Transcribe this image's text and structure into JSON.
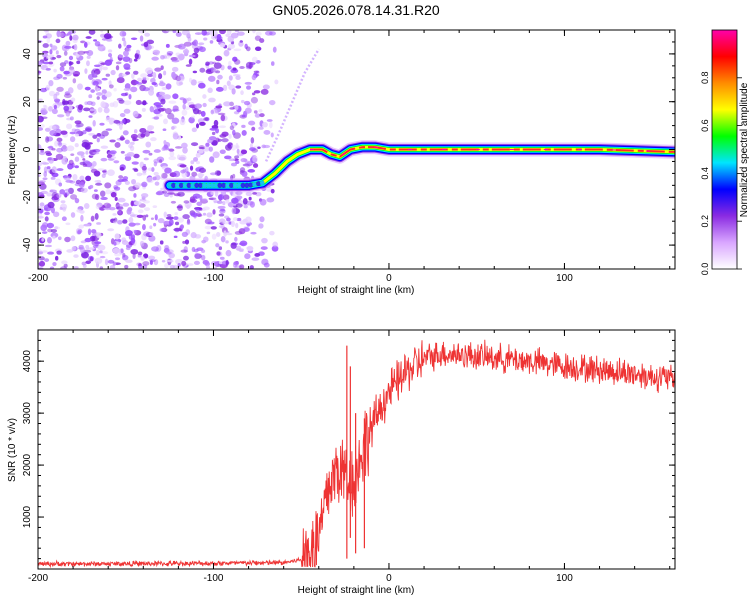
{
  "title": "GN05.2026.078.14.31.R20",
  "chart_data": [
    {
      "type": "heatmap",
      "xlabel": "Height of straight line (km)",
      "ylabel": "Frequency (Hz)",
      "xlim": [
        -200,
        163
      ],
      "ylim": [
        -50,
        50
      ],
      "xticks": [
        -200,
        -100,
        0,
        100
      ],
      "yticks": [
        -40,
        -20,
        0,
        20,
        40
      ],
      "colorbar": {
        "label": "Normalized spectral amplitude",
        "range": [
          0,
          1
        ],
        "ticks": [
          "0.0",
          "0.2",
          "0.4",
          "0.6",
          "0.8"
        ],
        "colors": [
          "#ffffff",
          "#d9a6ff",
          "#8a2be2",
          "#0000ff",
          "#00e5ff",
          "#00ff00",
          "#ffff00",
          "#ff8c00",
          "#ff0000",
          "#ff00aa"
        ]
      },
      "noise_region_x": [
        -200,
        -62
      ],
      "ridge": [
        {
          "x": -125,
          "f": -15
        },
        {
          "x": -110,
          "f": -15
        },
        {
          "x": -95,
          "f": -15
        },
        {
          "x": -80,
          "f": -15
        },
        {
          "x": -72,
          "f": -14
        },
        {
          "x": -65,
          "f": -10
        },
        {
          "x": -58,
          "f": -5
        },
        {
          "x": -52,
          "f": -2
        },
        {
          "x": -45,
          "f": 0
        },
        {
          "x": -38,
          "f": 0
        },
        {
          "x": -33,
          "f": -2
        },
        {
          "x": -28,
          "f": -3
        },
        {
          "x": -22,
          "f": 0
        },
        {
          "x": -15,
          "f": 1
        },
        {
          "x": -8,
          "f": 1
        },
        {
          "x": 0,
          "f": 0
        },
        {
          "x": 10,
          "f": 0
        },
        {
          "x": 40,
          "f": 0
        },
        {
          "x": 80,
          "f": 0
        },
        {
          "x": 120,
          "f": 0
        },
        {
          "x": 163,
          "f": -1
        }
      ],
      "faint_branch": [
        {
          "x": -70,
          "f": -5
        },
        {
          "x": -62,
          "f": 8
        },
        {
          "x": -55,
          "f": 20
        },
        {
          "x": -48,
          "f": 32
        },
        {
          "x": -40,
          "f": 42
        }
      ]
    },
    {
      "type": "line",
      "xlabel": "Height of straight line (km)",
      "ylabel": "SNR (10 * v/v)",
      "xlim": [
        -200,
        163
      ],
      "ylim": [
        0,
        4600
      ],
      "xticks": [
        -200,
        -100,
        0,
        100
      ],
      "yticks": [
        1000,
        2000,
        3000,
        4000
      ],
      "color": "#ee3333",
      "envelope": [
        {
          "x": -200,
          "y": 100
        },
        {
          "x": -150,
          "y": 100
        },
        {
          "x": -100,
          "y": 110
        },
        {
          "x": -60,
          "y": 120
        },
        {
          "x": -50,
          "y": 180
        },
        {
          "x": -42,
          "y": 450
        },
        {
          "x": -38,
          "y": 900
        },
        {
          "x": -35,
          "y": 1500
        },
        {
          "x": -30,
          "y": 1900
        },
        {
          "x": -25,
          "y": 1850
        },
        {
          "x": -20,
          "y": 1700
        },
        {
          "x": -15,
          "y": 2300
        },
        {
          "x": -10,
          "y": 2700
        },
        {
          "x": -5,
          "y": 3100
        },
        {
          "x": 0,
          "y": 3400
        },
        {
          "x": 10,
          "y": 3800
        },
        {
          "x": 20,
          "y": 4050
        },
        {
          "x": 30,
          "y": 4150
        },
        {
          "x": 50,
          "y": 4100
        },
        {
          "x": 80,
          "y": 4000
        },
        {
          "x": 100,
          "y": 3900
        },
        {
          "x": 130,
          "y": 3800
        },
        {
          "x": 163,
          "y": 3650
        }
      ],
      "spikes": [
        {
          "x": -24,
          "y": 4300,
          "low": 200
        },
        {
          "x": -22,
          "y": 3900,
          "low": 600
        },
        {
          "x": -19,
          "y": 3000,
          "low": 300
        },
        {
          "x": -14,
          "y": 2900,
          "low": 400
        }
      ]
    }
  ]
}
